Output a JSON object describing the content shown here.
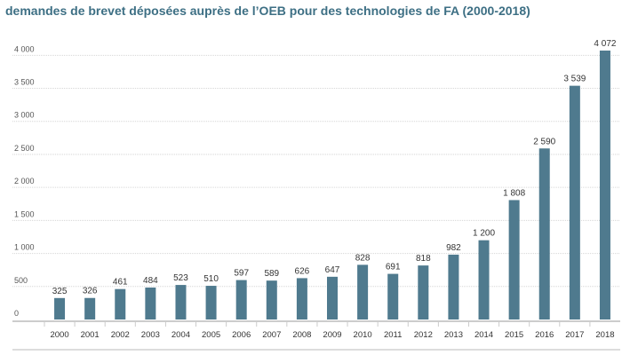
{
  "chart_data": {
    "type": "bar",
    "title": "demandes de brevet déposées auprès de l’OEB pour des technologies de FA (2000-2018)",
    "categories": [
      "2000",
      "2001",
      "2002",
      "2003",
      "2004",
      "2005",
      "2006",
      "2007",
      "2008",
      "2009",
      "2010",
      "2011",
      "2012",
      "2013",
      "2014",
      "2015",
      "2016",
      "2017",
      "2018"
    ],
    "values": [
      325,
      326,
      461,
      484,
      523,
      510,
      597,
      589,
      626,
      647,
      828,
      691,
      818,
      982,
      1200,
      1808,
      2590,
      3539,
      4072
    ],
    "value_labels": [
      "325",
      "326",
      "461",
      "484",
      "523",
      "510",
      "597",
      "589",
      "626",
      "647",
      "828",
      "691",
      "818",
      "982",
      "1 200",
      "1 808",
      "2 590",
      "3 539",
      "4 072"
    ],
    "yticks": [
      0,
      500,
      1000,
      1500,
      2000,
      2500,
      3000,
      3500,
      4000
    ],
    "ytick_labels": [
      "0",
      "500",
      "1 000",
      "1 500",
      "2 000",
      "2 500",
      "3 000",
      "3 500",
      "4 000"
    ],
    "ylim": [
      0,
      4300
    ],
    "grid": true,
    "bar_color": "#4f7a8e",
    "grid_color": "#d6d6d6",
    "axis_color": "#999999"
  }
}
